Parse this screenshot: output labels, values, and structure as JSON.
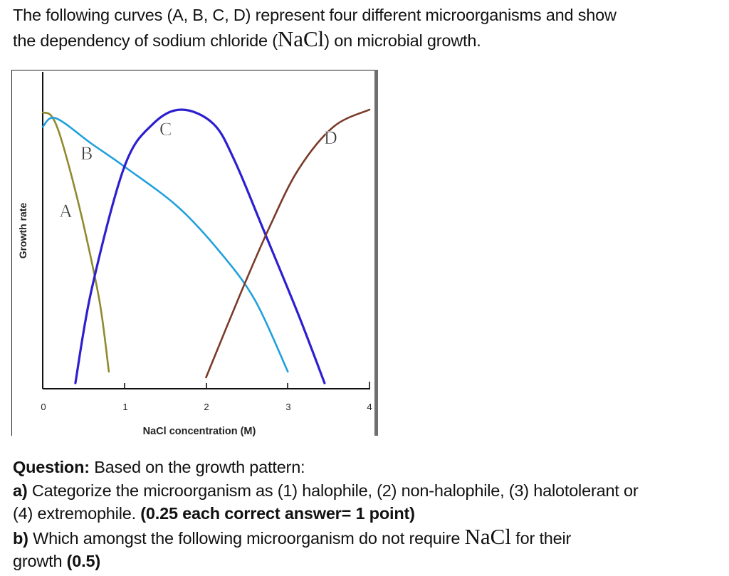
{
  "intro": {
    "line1": "The following curves (A, B, C, D) represent four different microorganisms and show",
    "line2_before": "the dependency of sodium chloride (",
    "line2_formula": "NaCl",
    "line2_after": ") on microbial growth."
  },
  "question": {
    "label": "Question:",
    "prompt": " Based on the growth pattern:",
    "a_label": "a)",
    "a_text": " Categorize the microorganism as (1) halophile, (2) non-halophile, (3) halotolerant or",
    "a_text2": "(4) extremophile. ",
    "a_points": "(0.25 each correct answer= 1 point)",
    "b_label": "b)",
    "b_text": " Which amongst the following microorganism do not require ",
    "b_formula": "NaCl",
    "b_text_after": " for their",
    "b_text2": "growth ",
    "b_points": "(0.5)"
  },
  "chart_data": {
    "type": "line",
    "title": "",
    "xlabel": "NaCl concentration (M)",
    "ylabel": "Growth rate",
    "xlim": [
      0,
      4
    ],
    "ylim": [
      0,
      1
    ],
    "x_ticks": [
      "0",
      "1",
      "2",
      "3",
      "4"
    ],
    "grid": false,
    "legend": "inline curve labels",
    "series": [
      {
        "name": "A",
        "color": "#8f8a2e",
        "x": [
          0,
          0.1,
          0.2,
          0.35,
          0.52,
          0.7,
          0.81
        ],
        "y": [
          0.97,
          0.96,
          0.9,
          0.75,
          0.55,
          0.3,
          0.06
        ]
      },
      {
        "name": "B",
        "color": "#1fa0dc",
        "x": [
          0,
          0.16,
          0.6,
          1.0,
          1.65,
          2.17,
          2.6,
          3.0
        ],
        "y": [
          0.92,
          0.95,
          0.86,
          0.78,
          0.64,
          0.48,
          0.31,
          0.06
        ]
      },
      {
        "name": "C",
        "color": "#2d1fd0",
        "x": [
          0.4,
          0.6,
          1.0,
          1.35,
          1.7,
          2.09,
          2.35,
          2.7,
          3.13,
          3.45
        ],
        "y": [
          0.02,
          0.35,
          0.78,
          0.93,
          0.98,
          0.93,
          0.8,
          0.56,
          0.26,
          0.02
        ]
      },
      {
        "name": "D",
        "color": "#7a3a2a",
        "x": [
          2.0,
          2.43,
          2.78,
          3.13,
          3.56,
          4.0
        ],
        "y": [
          0.04,
          0.34,
          0.57,
          0.77,
          0.92,
          0.98
        ]
      }
    ],
    "annotations": [
      "A",
      "B",
      "C",
      "D"
    ]
  }
}
